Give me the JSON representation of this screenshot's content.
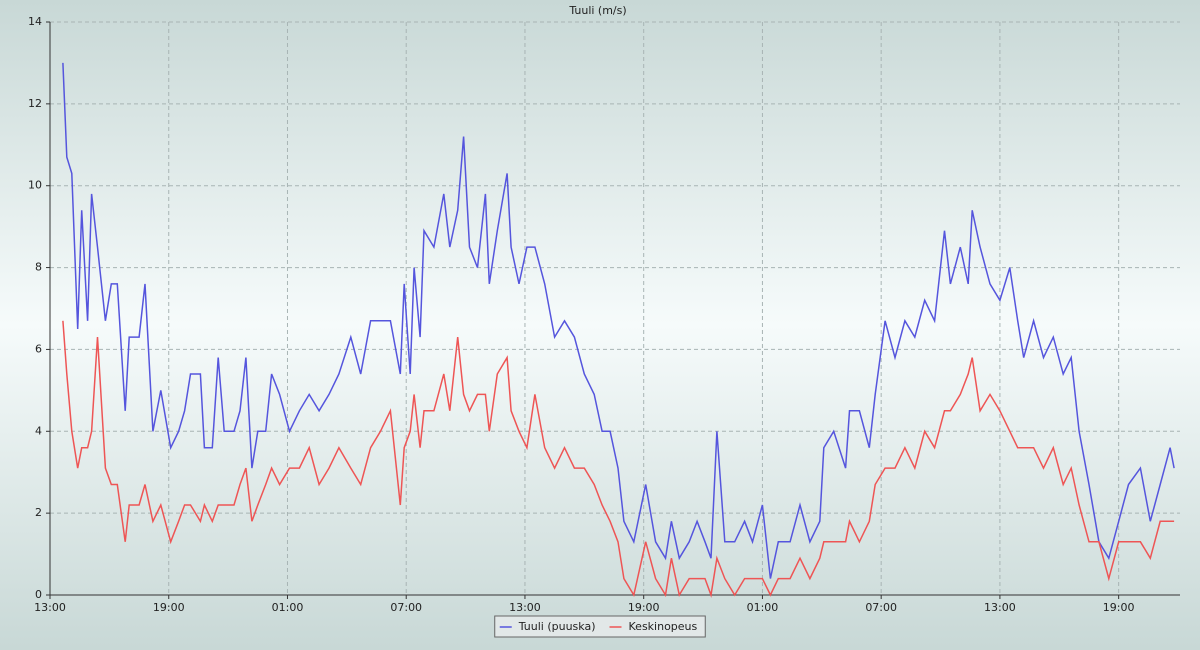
{
  "chart_data": {
    "type": "line",
    "title": "Tuuli (m/s)",
    "x": [
      0.65,
      0.85,
      1.1,
      1.4,
      1.6,
      1.9,
      2.1,
      2.4,
      2.8,
      3.1,
      3.4,
      3.8,
      4.0,
      4.5,
      4.8,
      5.2,
      5.6,
      6.1,
      6.5,
      6.8,
      7.1,
      7.6,
      7.8,
      8.2,
      8.5,
      8.8,
      9.3,
      9.6,
      9.9,
      10.2,
      10.5,
      10.9,
      11.2,
      11.6,
      12.1,
      12.6,
      13.1,
      13.6,
      14.1,
      14.6,
      15.2,
      15.7,
      16.2,
      16.7,
      17.2,
      17.7,
      17.9,
      18.2,
      18.4,
      18.7,
      18.9,
      19.4,
      19.9,
      20.2,
      20.6,
      20.9,
      21.2,
      21.6,
      22.0,
      22.2,
      22.6,
      23.1,
      23.3,
      23.7,
      24.1,
      24.5,
      25.0,
      25.5,
      26.0,
      26.5,
      27.0,
      27.5,
      27.9,
      28.3,
      28.7,
      29.0,
      29.5,
      30.1,
      30.6,
      31.1,
      31.4,
      31.8,
      32.3,
      32.7,
      33.1,
      33.4,
      33.7,
      34.1,
      34.6,
      35.1,
      35.5,
      36.0,
      36.4,
      36.8,
      37.4,
      37.9,
      38.4,
      38.9,
      39.1,
      39.6,
      40.2,
      40.4,
      40.9,
      41.4,
      41.7,
      42.2,
      42.7,
      43.2,
      43.7,
      44.2,
      44.7,
      45.2,
      45.5,
      46.0,
      46.4,
      46.6,
      47.0,
      47.5,
      48.0,
      48.5,
      48.9,
      49.2,
      49.7,
      50.2,
      50.7,
      51.2,
      51.6,
      52.0,
      52.5,
      53.0,
      53.5,
      54.0,
      54.5,
      55.1,
      55.6,
      56.1,
      56.6,
      56.8
    ],
    "series": [
      {
        "name": "Tuuli (puuska)",
        "color": "#5555dd",
        "values": [
          13,
          10.7,
          10.3,
          6.5,
          9.4,
          6.7,
          9.8,
          8.5,
          6.7,
          7.6,
          7.6,
          4.5,
          6.3,
          6.3,
          7.6,
          4,
          5,
          3.6,
          4,
          4.5,
          5.4,
          5.4,
          3.6,
          3.6,
          5.8,
          4,
          4,
          4.5,
          5.8,
          3.1,
          4,
          4,
          5.4,
          4.9,
          4,
          4.5,
          4.9,
          4.5,
          4.9,
          5.4,
          6.3,
          5.4,
          6.7,
          6.7,
          6.7,
          5.4,
          7.6,
          5.4,
          8,
          6.3,
          8.9,
          8.5,
          9.8,
          8.5,
          9.4,
          11.2,
          8.5,
          8,
          9.8,
          7.6,
          8.9,
          10.3,
          8.5,
          7.6,
          8.5,
          8.5,
          7.6,
          6.3,
          6.7,
          6.3,
          5.4,
          4.9,
          4,
          4,
          3.1,
          1.8,
          1.3,
          2.7,
          1.3,
          0.9,
          1.8,
          0.9,
          1.3,
          1.8,
          1.3,
          0.9,
          4,
          1.3,
          1.3,
          1.8,
          1.3,
          2.2,
          0.4,
          1.3,
          1.3,
          2.2,
          1.3,
          1.8,
          3.6,
          4,
          3.1,
          4.5,
          4.5,
          3.6,
          4.9,
          6.7,
          5.8,
          6.7,
          6.3,
          7.2,
          6.7,
          8.9,
          7.6,
          8.5,
          7.6,
          9.4,
          8.5,
          7.6,
          7.2,
          8,
          6.7,
          5.8,
          6.7,
          5.8,
          6.3,
          5.4,
          5.8,
          4,
          2.7,
          1.3,
          0.9,
          1.8,
          2.7,
          3.1,
          1.8,
          2.7,
          3.6,
          3.1
        ]
      },
      {
        "name": "Keskinopeus",
        "color": "#ee5555",
        "values": [
          6.7,
          5.4,
          4,
          3.1,
          3.6,
          3.6,
          4,
          6.3,
          3.1,
          2.7,
          2.7,
          1.3,
          2.2,
          2.2,
          2.7,
          1.8,
          2.2,
          1.3,
          1.8,
          2.2,
          2.2,
          1.8,
          2.2,
          1.8,
          2.2,
          2.2,
          2.2,
          2.7,
          3.1,
          1.8,
          2.2,
          2.7,
          3.1,
          2.7,
          3.1,
          3.1,
          3.6,
          2.7,
          3.1,
          3.6,
          3.1,
          2.7,
          3.6,
          4,
          4.5,
          2.2,
          3.6,
          4,
          4.9,
          3.6,
          4.5,
          4.5,
          5.4,
          4.5,
          6.3,
          4.9,
          4.5,
          4.9,
          4.9,
          4,
          5.4,
          5.8,
          4.5,
          4,
          3.6,
          4.9,
          3.6,
          3.1,
          3.6,
          3.1,
          3.1,
          2.7,
          2.2,
          1.8,
          1.3,
          0.4,
          0,
          1.3,
          0.4,
          0,
          0.9,
          0,
          0.4,
          0.4,
          0.4,
          0,
          0.9,
          0.4,
          0,
          0.4,
          0.4,
          0.4,
          0,
          0.4,
          0.4,
          0.9,
          0.4,
          0.9,
          1.3,
          1.3,
          1.3,
          1.8,
          1.3,
          1.8,
          2.7,
          3.1,
          3.1,
          3.6,
          3.1,
          4,
          3.6,
          4.5,
          4.5,
          4.9,
          5.4,
          5.8,
          4.5,
          4.9,
          4.5,
          4,
          3.6,
          3.6,
          3.6,
          3.1,
          3.6,
          2.7,
          3.1,
          2.2,
          1.3,
          1.3,
          0.4,
          1.3,
          1.3,
          1.3,
          0.9,
          1.8,
          1.8,
          1.8
        ]
      }
    ],
    "xlim": [
      0,
      57.1
    ],
    "xticks": [
      {
        "value": 0,
        "label": "13:00"
      },
      {
        "value": 6,
        "label": "19:00"
      },
      {
        "value": 12,
        "label": "01:00"
      },
      {
        "value": 18,
        "label": "07:00"
      },
      {
        "value": 24,
        "label": "13:00"
      },
      {
        "value": 30,
        "label": "19:00"
      },
      {
        "value": 36,
        "label": "01:00"
      },
      {
        "value": 42,
        "label": "07:00"
      },
      {
        "value": 48,
        "label": "13:00"
      },
      {
        "value": 54,
        "label": "19:00"
      }
    ],
    "ylim": [
      0,
      14
    ],
    "yticks": [
      0,
      2,
      4,
      6,
      8,
      10,
      12,
      14
    ],
    "grid": true
  }
}
